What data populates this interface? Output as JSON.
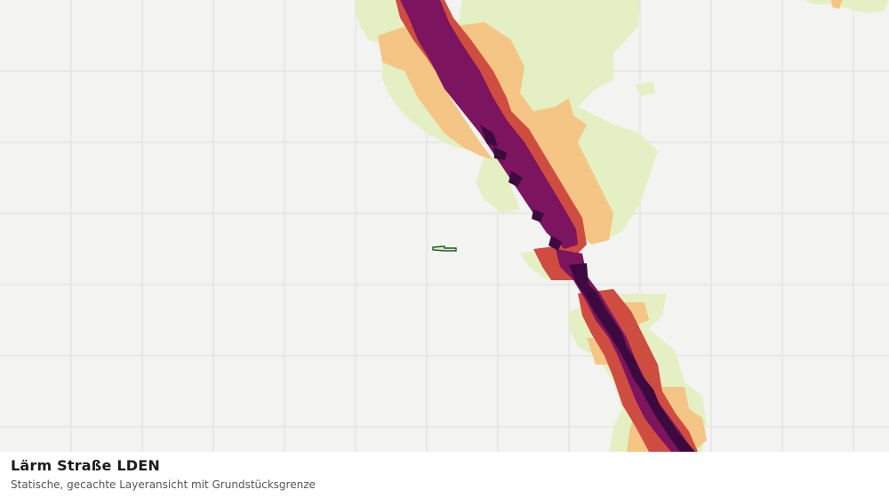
{
  "map": {
    "title": "Lärm Straße LDEN",
    "subtitle": "Statische, gecachte Layeransicht mit Grundstücksgrenze",
    "colors": {
      "background": "#f3f4f1",
      "grid": "#dcdedb",
      "noise_band_1": "#e4f0c4",
      "noise_band_2": "#f4c584",
      "noise_band_3": "#cf4c40",
      "noise_band_4": "#7d145f",
      "noise_band_5": "#3c0a3e",
      "parcel_outline": "#1d5a2e"
    }
  }
}
